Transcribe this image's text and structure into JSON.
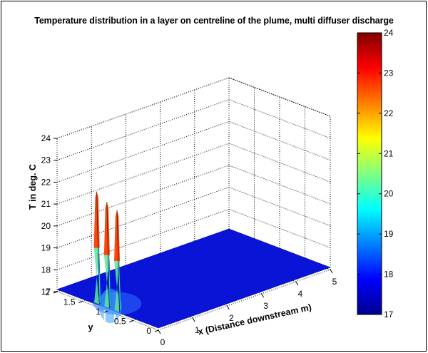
{
  "chart_data": {
    "type": "surface",
    "title": "Temperature distribution in a layer on centreline of the plume, multi diffuser discharge",
    "xlabel": "x (Distance downstream m)",
    "ylabel": "y",
    "zlabel": "T in deg. C",
    "xlim": [
      0,
      5
    ],
    "ylim": [
      0,
      2
    ],
    "zlim": [
      17,
      24
    ],
    "x_ticks": [
      "0",
      "1",
      "2",
      "3",
      "4",
      "5"
    ],
    "y_ticks": [
      "0",
      "0.5",
      "1",
      "1.5",
      "2"
    ],
    "z_ticks": [
      "17",
      "18",
      "19",
      "20",
      "21",
      "22",
      "23",
      "24"
    ],
    "grid": true,
    "colormap": "jet",
    "colorbar": {
      "min": 17,
      "max": 24,
      "ticks": [
        "17",
        "18",
        "19",
        "20",
        "21",
        "22",
        "23",
        "24"
      ],
      "placement": "right"
    },
    "background_temperature": 17.1,
    "surface_extent": {
      "x": [
        0,
        5
      ],
      "y": [
        0,
        2
      ]
    },
    "peaks": [
      {
        "x": 0.05,
        "y": 1.25,
        "value": 22.2
      },
      {
        "x": 0.05,
        "y": 1.05,
        "value": 21.9
      },
      {
        "x": 0.05,
        "y": 0.85,
        "value": 21.7
      }
    ]
  }
}
